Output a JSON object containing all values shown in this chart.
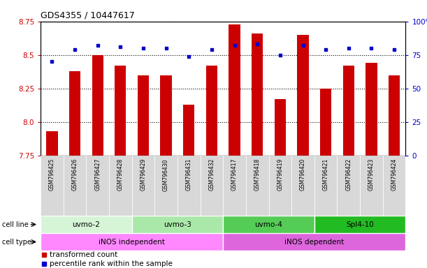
{
  "title": "GDS4355 / 10447617",
  "samples": [
    "GSM796425",
    "GSM796426",
    "GSM796427",
    "GSM796428",
    "GSM796429",
    "GSM796430",
    "GSM796431",
    "GSM796432",
    "GSM796417",
    "GSM796418",
    "GSM796419",
    "GSM796420",
    "GSM796421",
    "GSM796422",
    "GSM796423",
    "GSM796424"
  ],
  "transformed_count": [
    7.93,
    8.38,
    8.5,
    8.42,
    8.35,
    8.35,
    8.13,
    8.42,
    8.73,
    8.66,
    8.17,
    8.65,
    8.25,
    8.42,
    8.44,
    8.35
  ],
  "percentile_rank": [
    70,
    79,
    82,
    81,
    80,
    80,
    74,
    79,
    82,
    83,
    75,
    82,
    79,
    80,
    80,
    79
  ],
  "cell_line_groups": [
    {
      "label": "uvmo-2",
      "start": 0,
      "end": 4,
      "color": "#d6f5d6"
    },
    {
      "label": "uvmo-3",
      "start": 4,
      "end": 8,
      "color": "#aae8aa"
    },
    {
      "label": "uvmo-4",
      "start": 8,
      "end": 12,
      "color": "#55cc55"
    },
    {
      "label": "Spl4-10",
      "start": 12,
      "end": 16,
      "color": "#22bb22"
    }
  ],
  "cell_type_groups": [
    {
      "label": "iNOS independent",
      "start": 0,
      "end": 8,
      "color": "#ff88ff"
    },
    {
      "label": "iNOS dependent",
      "start": 8,
      "end": 16,
      "color": "#dd66dd"
    }
  ],
  "ylim_left": [
    7.75,
    8.75
  ],
  "ylim_right": [
    0,
    100
  ],
  "yticks_left": [
    7.75,
    8.0,
    8.25,
    8.5,
    8.75
  ],
  "yticks_right": [
    0,
    25,
    50,
    75,
    100
  ],
  "bar_color": "#cc0000",
  "dot_color": "#0000cc",
  "left_tick_color": "#cc0000",
  "right_tick_color": "#0000cc",
  "legend_red_label": "transformed count",
  "legend_blue_label": "percentile rank within the sample"
}
